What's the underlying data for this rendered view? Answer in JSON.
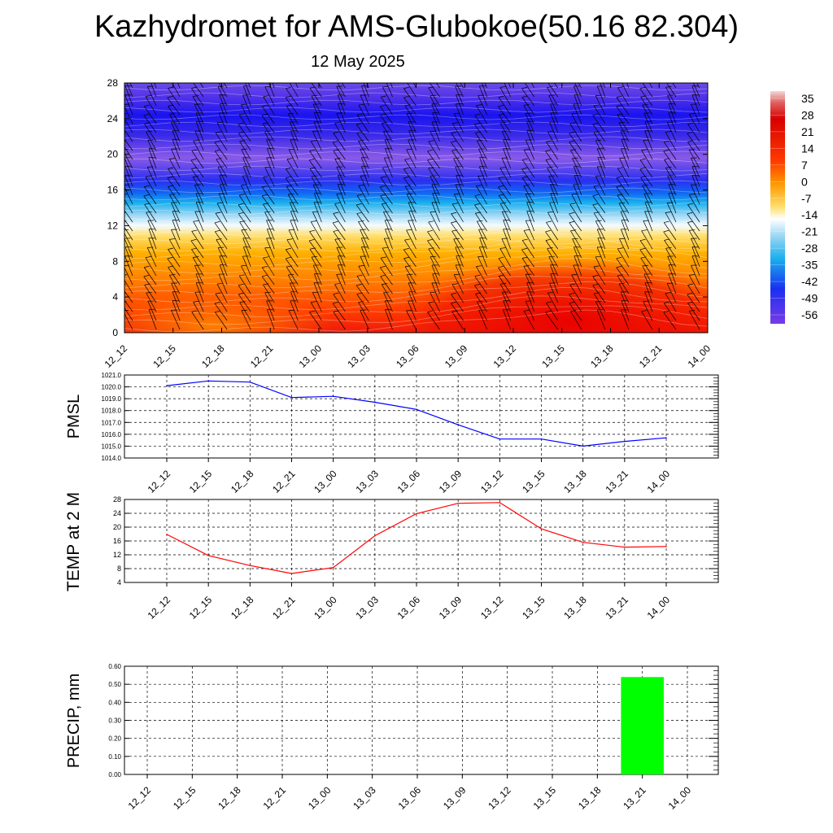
{
  "title": "Kazhydromet for AMS-Glubokoe(50.16 82.304)",
  "subtitle": "12 May 2025",
  "chart_data": [
    {
      "type": "heatmap",
      "ylim": [
        0,
        28
      ],
      "y_ticks": [
        "0",
        "4",
        "8",
        "12",
        "16",
        "20",
        "24",
        "28"
      ],
      "categories": [
        "12_12",
        "12_15",
        "12_18",
        "12_21",
        "13_00",
        "13_03",
        "13_06",
        "13_09",
        "13_12",
        "13_15",
        "13_18",
        "13_21",
        "14_00"
      ],
      "colorbar": {
        "labels": [
          "35",
          "28",
          "21",
          "14",
          "7",
          "0",
          "-7",
          "-14",
          "-21",
          "-28",
          "-35",
          "-42",
          "-49",
          "-56"
        ],
        "range": [
          -63,
          42
        ]
      },
      "wind_barbs": true
    },
    {
      "type": "line",
      "ylabel": "PMSL",
      "ylim": [
        1014,
        1021
      ],
      "y_ticks": [
        "1014.0",
        "1015.0",
        "1016.0",
        "1017.0",
        "1018.0",
        "1019.0",
        "1020.0",
        "1021.0"
      ],
      "categories": [
        "12_12",
        "12_15",
        "12_18",
        "12_21",
        "13_00",
        "13_03",
        "13_06",
        "13_09",
        "13_12",
        "13_15",
        "13_18",
        "13_21",
        "14_00"
      ],
      "values": [
        1020.1,
        1020.5,
        1020.4,
        1019.1,
        1019.2,
        1018.7,
        1018.1,
        1016.8,
        1015.6,
        1015.6,
        1015.0,
        1015.4,
        1015.7
      ],
      "color": "#0000ff",
      "grid": true
    },
    {
      "type": "line",
      "ylabel": "TEMP at 2 M",
      "ylim": [
        4,
        28
      ],
      "y_ticks": [
        "4",
        "8",
        "12",
        "16",
        "20",
        "24",
        "28"
      ],
      "categories": [
        "12_12",
        "12_15",
        "12_18",
        "12_21",
        "13_00",
        "13_03",
        "13_06",
        "13_09",
        "13_12",
        "13_15",
        "13_18",
        "13_21",
        "14_00"
      ],
      "values": [
        17.9,
        11.8,
        8.9,
        6.6,
        8.3,
        17.5,
        23.9,
        26.9,
        27.1,
        19.5,
        15.6,
        14.2,
        14.4
      ],
      "color": "#ff0000",
      "grid": true
    },
    {
      "type": "bar",
      "ylabel": "PRECIP, mm",
      "ylim": [
        0,
        0.6
      ],
      "y_ticks": [
        "0.00",
        "0.10",
        "0.20",
        "0.30",
        "0.40",
        "0.50",
        "0.60"
      ],
      "categories": [
        "12_12",
        "12_15",
        "12_18",
        "12_21",
        "13_00",
        "13_03",
        "13_06",
        "13_09",
        "13_12",
        "13_15",
        "13_18",
        "13_21",
        "14_00"
      ],
      "values": [
        0,
        0,
        0,
        0,
        0,
        0,
        0,
        0,
        0,
        0,
        0,
        0.54,
        0
      ],
      "color": "#00ff00",
      "grid": true
    }
  ]
}
